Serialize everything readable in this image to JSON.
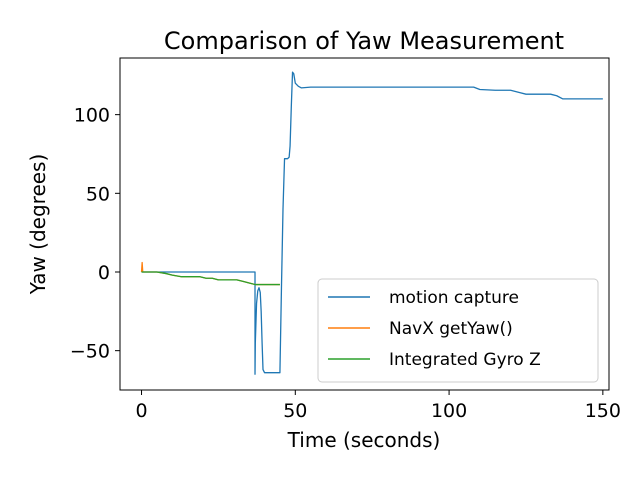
{
  "chart_data": {
    "type": "line",
    "title": "Comparison of Yaw Measurement",
    "xlabel": "Time (seconds)",
    "ylabel": "Yaw (degrees)",
    "xlim": [
      -7,
      152
    ],
    "ylim": [
      -75,
      136
    ],
    "xticks": [
      0,
      50,
      100,
      150
    ],
    "xtick_labels": [
      "0",
      "50",
      "100",
      "150"
    ],
    "yticks": [
      -50,
      0,
      50,
      100
    ],
    "ytick_labels": [
      "−50",
      "0",
      "50",
      "100"
    ],
    "grid": false,
    "legend_position": "lower-right",
    "series": [
      {
        "name": "motion capture",
        "color": "#1f77b4",
        "x": [
          0,
          10,
          20,
          30,
          36.9,
          36.9,
          37.0,
          37.4,
          37.8,
          38.2,
          38.6,
          38.9,
          39.2,
          39.5,
          40.0,
          41,
          42,
          43,
          44,
          45,
          45.5,
          46,
          46.5,
          47,
          47.5,
          48,
          48.3,
          48.7,
          49.1,
          49.5,
          50,
          51,
          52,
          55,
          60,
          70,
          80,
          90,
          100,
          108,
          110,
          115,
          120,
          123,
          125,
          130,
          133,
          135,
          137,
          140,
          145,
          150
        ],
        "y": [
          0,
          0,
          0,
          0,
          0,
          -65,
          -45,
          -20,
          -12,
          -10,
          -13,
          -25,
          -45,
          -62,
          -64,
          -64,
          -64,
          -64,
          -64,
          -64,
          -10,
          40,
          72,
          72,
          72,
          73,
          80,
          105,
          127,
          126,
          120,
          118,
          117,
          117.5,
          117.5,
          117.5,
          117.5,
          117.5,
          117.5,
          117.5,
          116,
          115.5,
          115.5,
          114,
          113,
          113,
          113,
          112,
          110,
          110,
          110,
          110
        ]
      },
      {
        "name": "NavX getYaw()",
        "color": "#ff7f0e",
        "x": [
          0,
          0.2,
          0.4,
          1,
          3,
          5,
          8,
          10,
          13,
          16,
          19,
          21,
          23,
          25,
          28,
          31,
          33,
          35,
          37,
          40,
          42,
          44,
          45
        ],
        "y": [
          0,
          6,
          0,
          0,
          0,
          0,
          -1,
          -2,
          -3,
          -3,
          -3,
          -4,
          -4,
          -5,
          -5,
          -5,
          -6,
          -7,
          -8,
          -8,
          -8,
          -8,
          -8
        ]
      },
      {
        "name": "Integrated Gyro Z",
        "color": "#2ca02c",
        "x": [
          0,
          1,
          3,
          5,
          8,
          10,
          13,
          16,
          19,
          21,
          23,
          25,
          28,
          31,
          33,
          35,
          37,
          40,
          42,
          44,
          45
        ],
        "y": [
          0,
          0,
          0,
          0,
          -1,
          -2,
          -3,
          -3,
          -3,
          -4,
          -4,
          -5,
          -5,
          -5,
          -6,
          -7,
          -8,
          -8,
          -8,
          -8,
          -8
        ]
      }
    ]
  }
}
